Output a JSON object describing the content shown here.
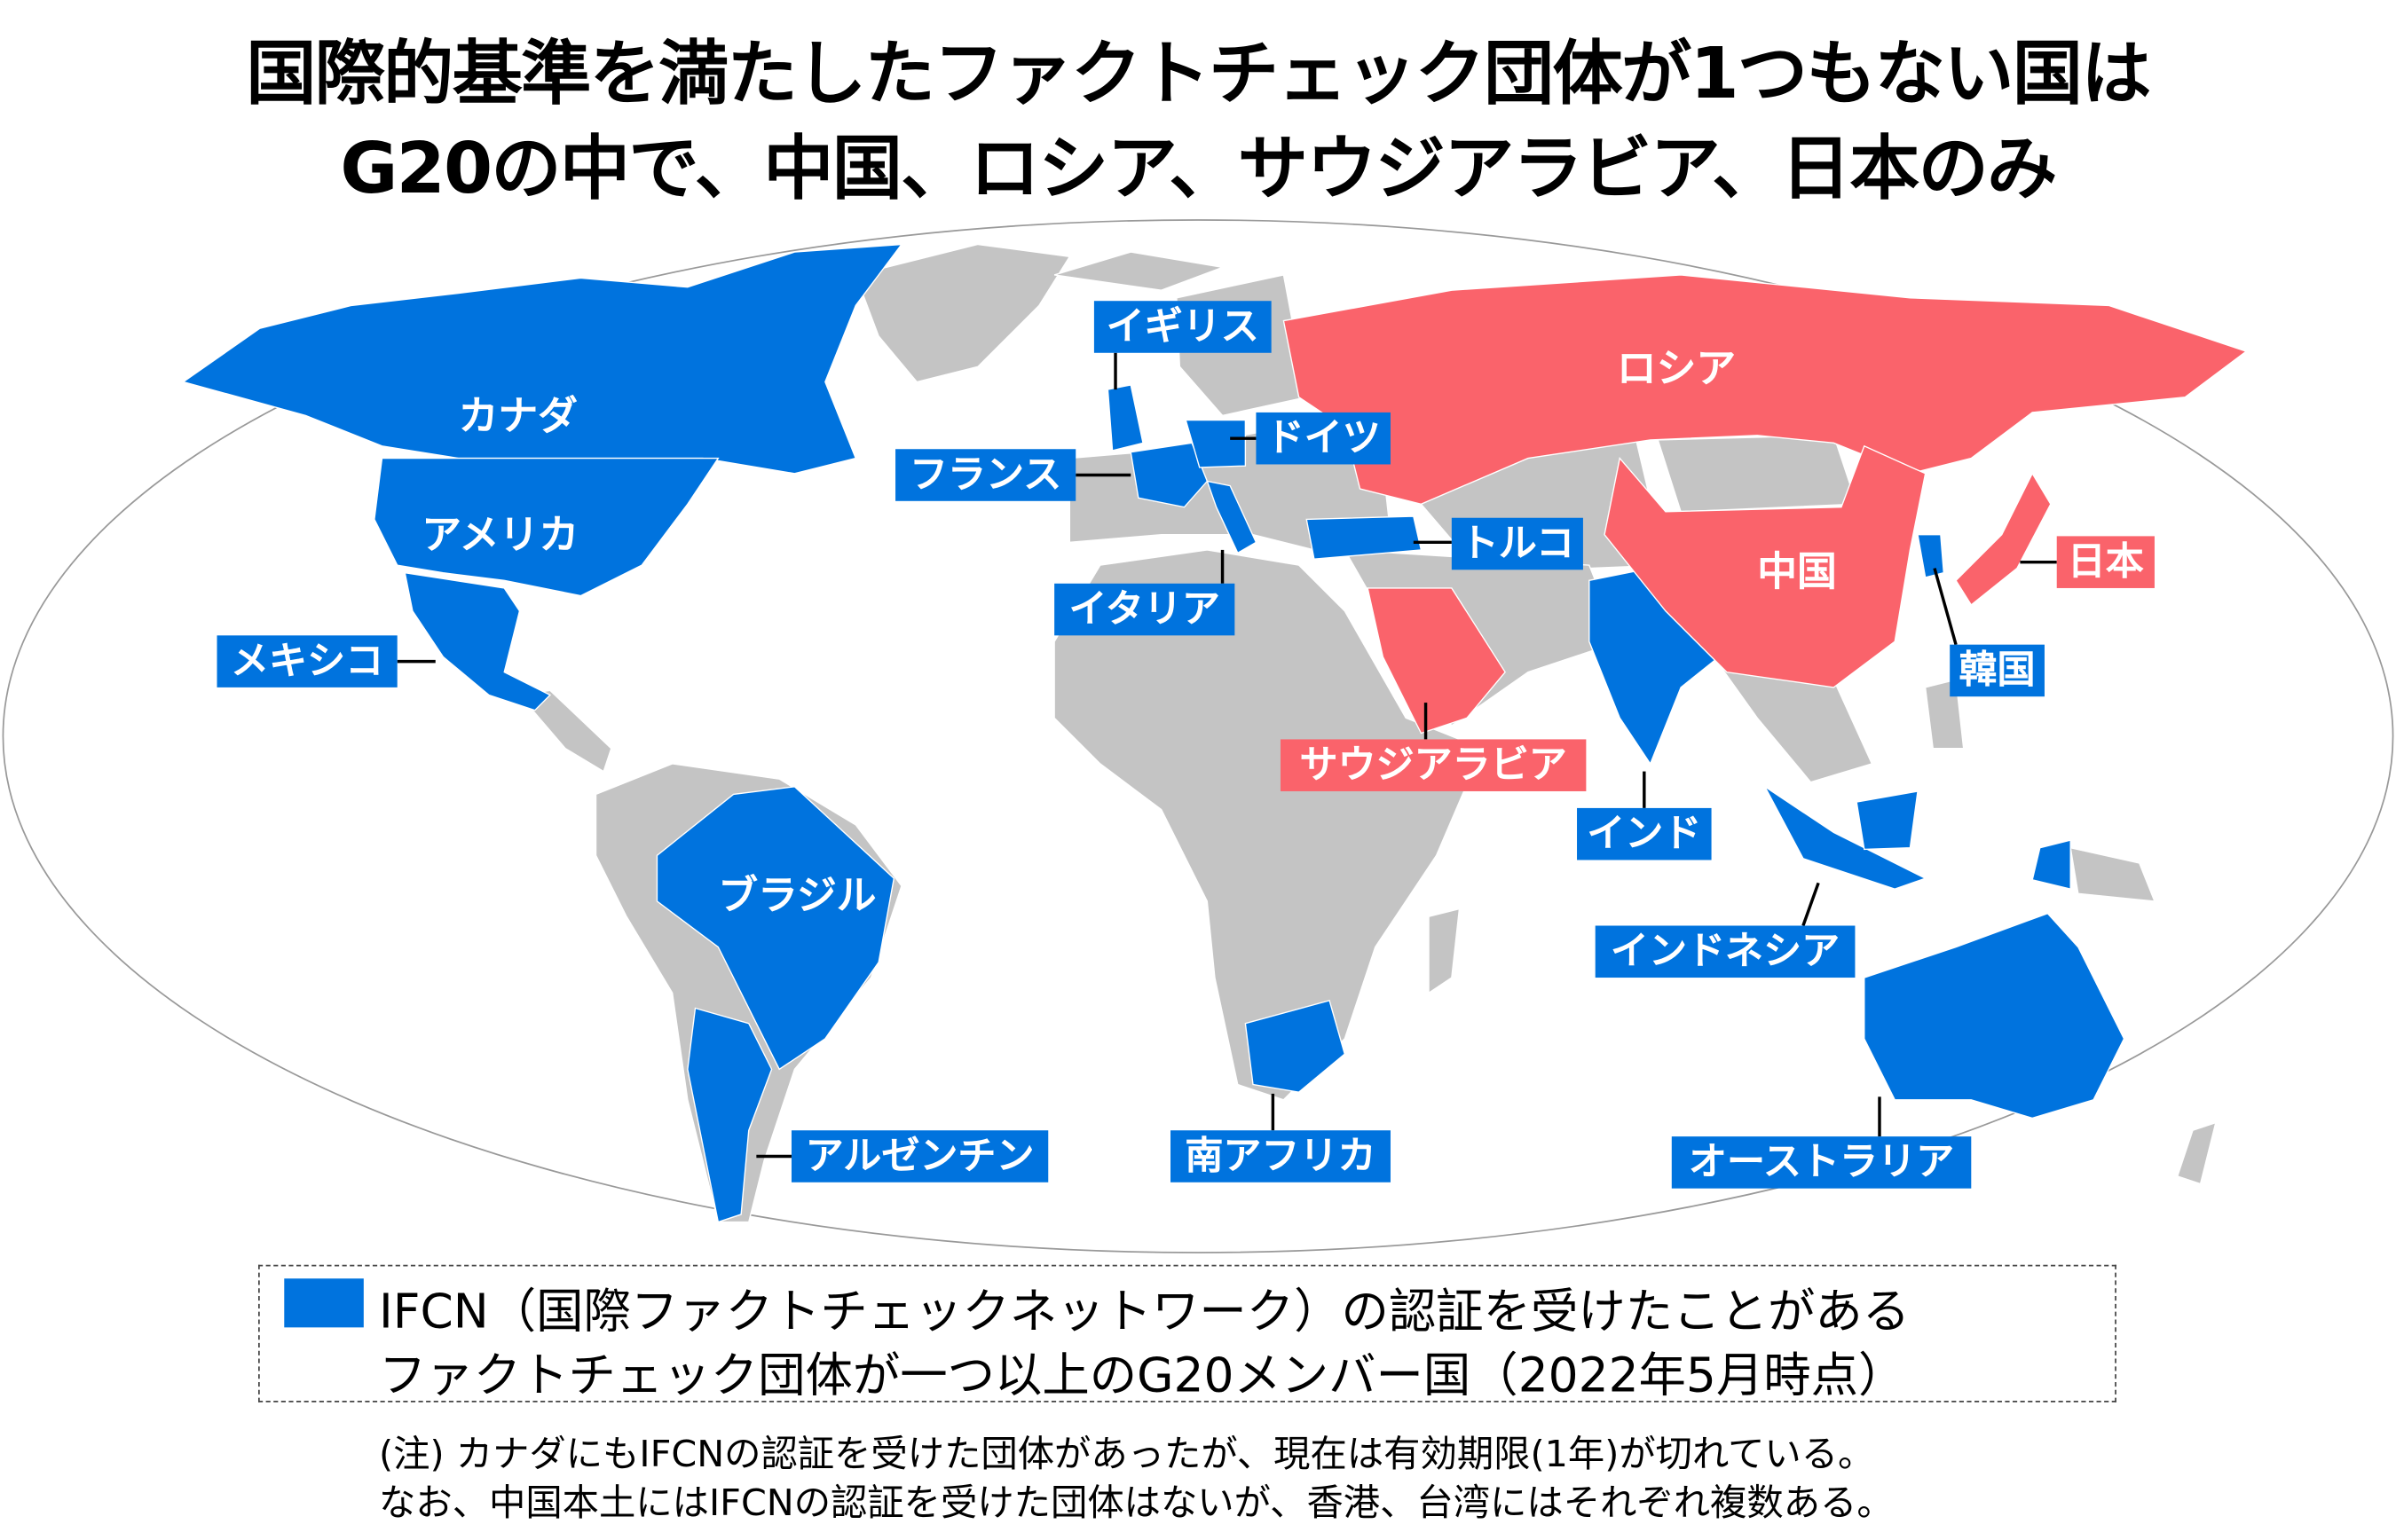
{
  "title": {
    "line1": "国際的基準を満たしたファクトチェック団体が1つもない国は",
    "line2": "G20の中で、中国、ロシア、サウジアラビア、日本のみ"
  },
  "colors": {
    "ifcn_member": "#0073de",
    "no_ifcn": "#fa636b",
    "other": "#c4c4c4",
    "ocean": "#ffffff"
  },
  "map_labels": {
    "canada": "カナダ",
    "usa": "アメリカ",
    "mexico": "メキシコ",
    "brazil": "ブラジル",
    "argentina": "アルゼンチン",
    "uk": "イギリス",
    "france": "フランス",
    "germany": "ドイツ",
    "italy": "イタリア",
    "turkey": "トルコ",
    "russia": "ロシア",
    "china": "中国",
    "japan": "日本",
    "korea": "韓国",
    "saudi": "サウジアラビア",
    "india": "インド",
    "indonesia": "インドネシア",
    "south_africa": "南アフリカ",
    "australia": "オーストラリア"
  },
  "legend": {
    "line1": "IFCN（国際ファクトチェックネットワーク）の認証を受けたことがある",
    "line2": "ファクトチェック団体が一つ以上のG20メンバー国（2022年5月時点）"
  },
  "notes": {
    "line1": "(注) カナダにもIFCNの認証を受けた団体があったが、現在は有効期限(1年)が切れている。",
    "line2": "なお、中国本土にはIFCNの認証を受けた団体はないが、香港、台湾にはそれぞれ複数ある。"
  }
}
